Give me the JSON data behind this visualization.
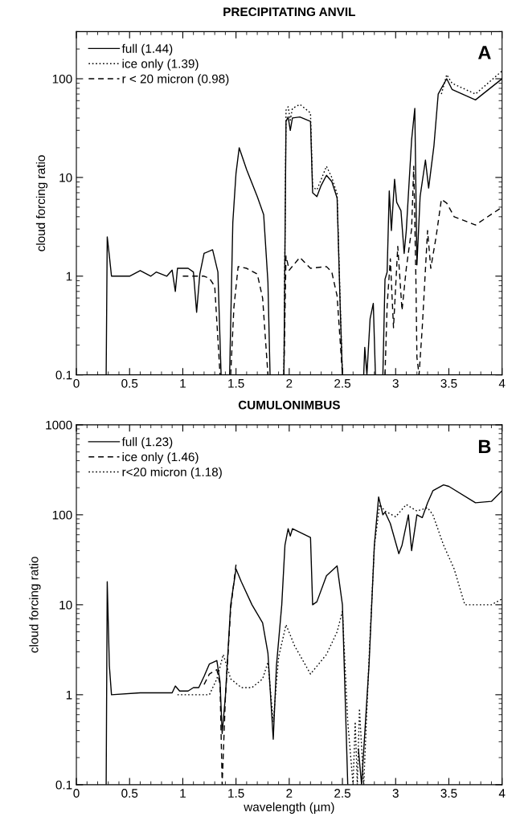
{
  "chart_data": [
    {
      "type": "line",
      "title": "PRECIPITATING ANVIL",
      "ylabel": "cloud forcing ratio",
      "annotations": [
        "A"
      ],
      "log": "y",
      "xlim": [
        0,
        4
      ],
      "ylim": [
        0.1,
        300
      ],
      "xticks": [
        0,
        0.5,
        1,
        1.5,
        2,
        2.5,
        3,
        3.5,
        4
      ],
      "yticks": [
        0.1,
        1,
        10,
        100
      ],
      "grid": false,
      "legend": "top left",
      "series": [
        {
          "name": "full (1.44)",
          "color": "#000000",
          "line_style": "solid",
          "x": [
            0.28,
            0.29,
            0.31,
            0.33,
            0.5,
            0.6,
            0.7,
            0.75,
            0.85,
            0.9,
            0.93,
            0.95,
            1.05,
            1.1,
            1.13,
            1.16,
            1.2,
            1.28,
            1.33,
            1.36,
            1.4,
            1.44,
            1.47,
            1.5,
            1.53,
            1.6,
            1.7,
            1.76,
            1.8,
            1.82,
            1.88,
            1.95,
            1.97,
            1.99,
            2.01,
            2.03,
            2.1,
            2.2,
            2.22,
            2.26,
            2.3,
            2.35,
            2.4,
            2.45,
            2.48,
            2.5,
            2.6,
            2.7,
            2.71,
            2.73,
            2.76,
            2.79,
            2.81,
            2.85,
            2.88,
            2.9,
            2.92,
            2.94,
            2.96,
            2.99,
            3.01,
            3.05,
            3.08,
            3.1,
            3.15,
            3.18,
            3.2,
            3.23,
            3.28,
            3.31,
            3.36,
            3.4,
            3.43,
            3.48,
            3.53,
            3.75,
            4.0
          ],
          "values": [
            0.1,
            2.5,
            1.6,
            1.0,
            1.0,
            1.14,
            1.0,
            1.1,
            1.0,
            1.15,
            0.7,
            1.2,
            1.2,
            1.1,
            0.43,
            1.05,
            1.7,
            1.85,
            1.1,
            0.1,
            null,
            0.1,
            3.5,
            11,
            20,
            12,
            6.4,
            4.2,
            0.87,
            0.1,
            null,
            0.1,
            37,
            41,
            30,
            40,
            41,
            37,
            7,
            6.4,
            8.3,
            10.5,
            9.1,
            6.2,
            0.45,
            0.1,
            null,
            0.1,
            0.19,
            0.1,
            0.37,
            0.53,
            0.1,
            null,
            0.1,
            0.93,
            1.1,
            7.3,
            2.9,
            9.6,
            5.6,
            4.6,
            1.7,
            2.9,
            24,
            50,
            1.3,
            6.4,
            15,
            7.8,
            21,
            70,
            80,
            100,
            78,
            61,
            100
          ]
        },
        {
          "name": "ice only (1.39)",
          "color": "#000000",
          "line_style": "dotted",
          "x": [
            1.95,
            1.97,
            1.99,
            2.01,
            2.03,
            2.1,
            2.2,
            2.22,
            2.26,
            2.3,
            2.35,
            2.4,
            2.45,
            2.48,
            2.5,
            3.0,
            3.43,
            3.48,
            3.53,
            3.75,
            4.0
          ],
          "values": [
            0.1,
            48,
            52,
            38,
            50,
            55,
            45,
            8,
            7.5,
            9.5,
            13,
            10,
            6.8,
            0.5,
            0.1,
            null,
            70,
            110,
            90,
            70,
            120
          ]
        },
        {
          "name": "r < 20 micron (0.98)",
          "color": "#000000",
          "line_style": "dashed",
          "x": [
            1.0,
            1.1,
            1.2,
            1.25,
            1.3,
            1.35,
            1.4,
            1.45,
            1.48,
            1.52,
            1.6,
            1.7,
            1.75,
            1.8,
            1.88,
            1.95,
            1.97,
            2.0,
            2.1,
            2.2,
            2.35,
            2.4,
            2.45,
            2.5,
            2.7,
            2.9,
            2.92,
            2.95,
            2.98,
            3.02,
            3.06,
            3.1,
            3.15,
            3.17,
            3.19,
            3.2,
            3.22,
            3.25,
            3.3,
            3.33,
            3.38,
            3.43,
            3.48,
            3.55,
            3.75,
            4.0
          ],
          "values": [
            1.0,
            1.0,
            1.0,
            0.95,
            0.79,
            0.1,
            null,
            0.1,
            0.48,
            1.25,
            1.2,
            1.05,
            0.6,
            0.1,
            null,
            0.1,
            1.6,
            1.15,
            1.55,
            1.2,
            1.25,
            1.1,
            0.63,
            0.1,
            null,
            0.1,
            0.5,
            1.5,
            0.3,
            2.0,
            0.45,
            1.2,
            3.0,
            13,
            1.0,
            0.15,
            0.1,
            0.3,
            2.9,
            1.2,
            2.5,
            6.0,
            5.5,
            4.0,
            3.3,
            5.0
          ]
        }
      ]
    },
    {
      "type": "line",
      "title": "CUMULONIMBUS",
      "xlabel": "wavelength (µm)",
      "ylabel": "cloud forcing ratio",
      "annotations": [
        "B"
      ],
      "log": "y",
      "xlim": [
        0,
        4
      ],
      "ylim": [
        0.1,
        1000
      ],
      "xticks": [
        0,
        0.5,
        1,
        1.5,
        2,
        2.5,
        3,
        3.5,
        4
      ],
      "yticks": [
        0.1,
        1,
        10,
        100,
        1000
      ],
      "grid": false,
      "legend": "top left",
      "series": [
        {
          "name": "full (1.23)",
          "color": "#000000",
          "line_style": "solid",
          "x": [
            0.28,
            0.29,
            0.31,
            0.33,
            0.6,
            0.9,
            0.93,
            0.97,
            1.05,
            1.1,
            1.15,
            1.2,
            1.25,
            1.32,
            1.35,
            1.37,
            1.4,
            1.45,
            1.5,
            1.55,
            1.65,
            1.75,
            1.8,
            1.85,
            1.88,
            1.93,
            1.96,
            1.99,
            2.01,
            2.03,
            2.2,
            2.22,
            2.26,
            2.35,
            2.45,
            2.5,
            2.55,
            2.62,
            2.65,
            2.68,
            2.72,
            2.75,
            2.8,
            2.84,
            2.88,
            2.9,
            2.95,
            3.03,
            3.06,
            3.12,
            3.15,
            3.2,
            3.25,
            3.3,
            3.35,
            3.45,
            3.5,
            3.75,
            3.9,
            4.0
          ],
          "values": [
            0.1,
            18,
            2.1,
            1.0,
            1.05,
            1.05,
            1.25,
            1.1,
            1.1,
            1.2,
            1.2,
            1.6,
            2.2,
            2.4,
            1.4,
            0.37,
            0.95,
            10,
            25,
            18,
            10,
            6.3,
            2.9,
            0.32,
            2.1,
            10,
            46,
            70,
            58,
            70,
            56,
            10,
            10.8,
            21,
            27,
            10,
            0.1,
            null,
            0.25,
            0.1,
            0.58,
            2.15,
            46,
            158,
            100,
            107,
            80,
            37,
            46,
            100,
            40,
            100,
            93,
            136,
            185,
            215,
            207,
            136,
            141,
            185
          ]
        },
        {
          "name": "ice only (1.46)",
          "color": "#000000",
          "line_style": "dashed",
          "x": [
            1.2,
            1.25,
            1.32,
            1.35,
            1.37,
            1.4,
            1.45,
            1.5
          ],
          "values": [
            1.3,
            1.7,
            1.9,
            1.3,
            0.1,
            0.9,
            9,
            28
          ]
        },
        {
          "name": "r<20 micron (1.18)",
          "color": "#000000",
          "line_style": "dotted",
          "x": [
            0.95,
            1.0,
            1.1,
            1.2,
            1.25,
            1.32,
            1.38,
            1.45,
            1.55,
            1.65,
            1.75,
            1.8,
            1.85,
            1.9,
            1.97,
            2.05,
            2.2,
            2.35,
            2.45,
            2.5,
            2.55,
            2.6,
            2.62,
            2.64,
            2.66,
            2.7,
            2.75,
            2.8,
            2.85,
            2.9,
            3.0,
            3.1,
            3.2,
            3.3,
            3.35,
            3.45,
            3.55,
            3.65,
            3.8,
            3.9,
            4.0
          ],
          "values": [
            1.0,
            1.0,
            1.0,
            1.0,
            1.0,
            1.5,
            2.8,
            1.5,
            1.2,
            1.2,
            1.5,
            2.3,
            0.5,
            2.6,
            6.0,
            3.5,
            1.7,
            2.8,
            5,
            8.5,
            0.5,
            0.1,
            0.5,
            0.1,
            0.7,
            0.1,
            2.5,
            45,
            130,
            110,
            95,
            130,
            110,
            120,
            100,
            46,
            25,
            10,
            10,
            10,
            11.6
          ]
        }
      ]
    }
  ]
}
